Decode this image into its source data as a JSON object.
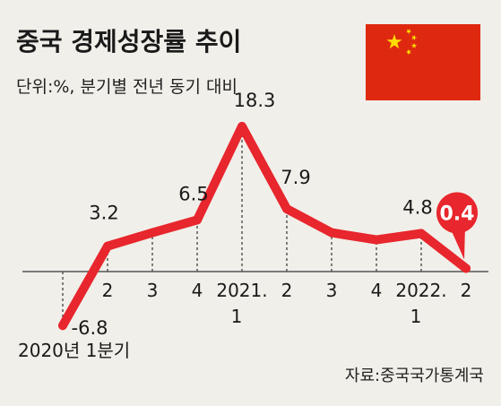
{
  "chart_data": {
    "type": "line",
    "title": "중국 경제성장률 추이",
    "subtitle": "단위:%, 분기별 전년 동기 대비",
    "source": "자료:중국국가통계국",
    "x": [
      "2020-Q1",
      "2020-Q2",
      "2020-Q3",
      "2020-Q4",
      "2021-Q1",
      "2021-Q2",
      "2021-Q3",
      "2021-Q4",
      "2022-Q1",
      "2022-Q2"
    ],
    "tick_labels": [
      {
        "line1": "2020년 1분기",
        "line2": ""
      },
      {
        "line1": "2",
        "line2": ""
      },
      {
        "line1": "3",
        "line2": ""
      },
      {
        "line1": "4",
        "line2": ""
      },
      {
        "line1": "2021.",
        "line2": "1"
      },
      {
        "line1": "2",
        "line2": ""
      },
      {
        "line1": "3",
        "line2": ""
      },
      {
        "line1": "4",
        "line2": ""
      },
      {
        "line1": "2022.",
        "line2": "1"
      },
      {
        "line1": "2",
        "line2": ""
      }
    ],
    "values": [
      -6.8,
      3.2,
      4.9,
      6.5,
      18.3,
      7.9,
      4.9,
      4.0,
      4.8,
      0.4
    ],
    "data_labels": [
      "-6.8",
      "3.2",
      "",
      "6.5",
      "18.3",
      "7.9",
      "",
      "",
      "4.8",
      "0.4"
    ],
    "highlight_index": 9,
    "ylim": [
      -8,
      20
    ],
    "line_color": "#e8262d",
    "flag": "china-flag",
    "flag_colors": {
      "field": "#de2910",
      "stars": "#ffde00"
    }
  }
}
